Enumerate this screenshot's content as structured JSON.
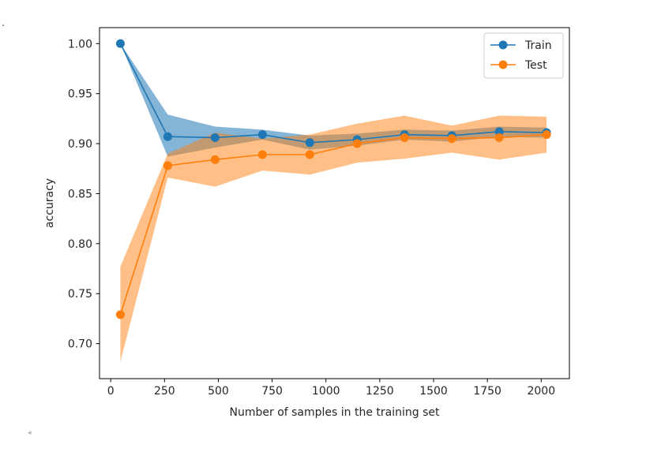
{
  "page": {
    "corner_mark": ".",
    "scroll_marker": "◂"
  },
  "chart_data": {
    "type": "line",
    "title": "",
    "xlabel": "Number of samples in the training set",
    "ylabel": "accuracy",
    "xlim": [
      -52,
      2131
    ],
    "ylim": [
      0.665,
      1.016
    ],
    "x_ticks": [
      0,
      250,
      500,
      750,
      1000,
      1250,
      1500,
      1750,
      2000
    ],
    "x_tick_labels": [
      "0",
      "250",
      "500",
      "750",
      "1000",
      "1250",
      "1500",
      "1750",
      "2000"
    ],
    "y_ticks": [
      0.7,
      0.75,
      0.8,
      0.85,
      0.9,
      0.95,
      1.0
    ],
    "y_tick_labels": [
      "0.70",
      "0.75",
      "0.80",
      "0.85",
      "0.90",
      "0.95",
      "1.00"
    ],
    "grid": false,
    "legend_position": "top-right",
    "x": [
      45,
      265,
      485,
      705,
      925,
      1145,
      1365,
      1585,
      1805,
      2025
    ],
    "series": [
      {
        "name": "Train",
        "color": "#1f77b4",
        "values": [
          1.0,
          0.907,
          0.906,
          0.909,
          0.901,
          0.904,
          0.909,
          0.908,
          0.912,
          0.911
        ],
        "band_lower": [
          1.0,
          0.887,
          0.896,
          0.904,
          0.894,
          0.898,
          0.904,
          0.902,
          0.907,
          0.906
        ],
        "band_upper": [
          1.0,
          0.929,
          0.917,
          0.914,
          0.908,
          0.91,
          0.914,
          0.913,
          0.917,
          0.916
        ]
      },
      {
        "name": "Test",
        "color": "#ff7f0e",
        "values": [
          0.729,
          0.878,
          0.884,
          0.889,
          0.889,
          0.9,
          0.906,
          0.905,
          0.906,
          0.909
        ],
        "band_lower": [
          0.682,
          0.866,
          0.857,
          0.873,
          0.869,
          0.881,
          0.885,
          0.891,
          0.884,
          0.891
        ],
        "band_upper": [
          0.777,
          0.89,
          0.911,
          0.905,
          0.909,
          0.92,
          0.928,
          0.918,
          0.928,
          0.927
        ]
      }
    ]
  }
}
